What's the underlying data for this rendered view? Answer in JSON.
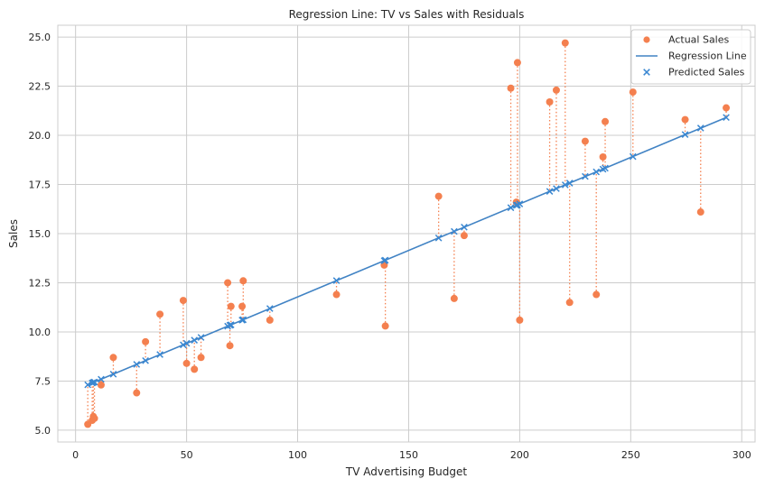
{
  "chart_data": {
    "type": "scatter",
    "title": "Regression Line: TV vs Sales with Residuals",
    "xlabel": "TV Advertising Budget",
    "ylabel": "Sales",
    "xlim": [
      -8,
      306
    ],
    "ylim": [
      4.4,
      25.6
    ],
    "xticks": [
      0,
      50,
      100,
      150,
      200,
      250,
      300
    ],
    "xtick_labels": [
      "0",
      "50",
      "100",
      "150",
      "200",
      "250",
      "300"
    ],
    "yticks": [
      5.0,
      7.5,
      10.0,
      12.5,
      15.0,
      17.5,
      20.0,
      22.5,
      25.0
    ],
    "ytick_labels": [
      "5.0",
      "7.5",
      "10.0",
      "12.5",
      "15.0",
      "17.5",
      "20.0",
      "22.5",
      "25.0"
    ],
    "grid": true,
    "legend_position": "top-right",
    "regression": {
      "intercept": 7.05,
      "slope": 0.0473
    },
    "colors": {
      "actual": "#f4804f",
      "line": "#4183c4",
      "predicted": "#3a87d1",
      "residual": "#f4804f"
    },
    "series": [
      {
        "name": "Actual Sales",
        "style": "scatter-dot",
        "x": [
          5.5,
          7.5,
          8.0,
          8.5,
          11.5,
          17.0,
          27.5,
          31.5,
          38.0,
          48.5,
          50.0,
          53.5,
          56.5,
          68.5,
          69.5,
          70.0,
          75.0,
          75.5,
          87.5,
          117.5,
          139.0,
          139.5,
          163.5,
          170.5,
          175.0,
          196.0,
          198.5,
          199.0,
          200.0,
          213.5,
          216.5,
          220.5,
          222.5,
          229.5,
          234.5,
          237.5,
          238.5,
          251.0,
          274.5,
          281.5,
          293.0
        ],
        "y": [
          5.3,
          5.5,
          5.7,
          5.6,
          7.3,
          8.7,
          6.9,
          9.5,
          10.9,
          11.6,
          8.4,
          8.1,
          8.7,
          12.5,
          9.3,
          11.3,
          11.3,
          12.6,
          10.6,
          11.9,
          13.4,
          10.3,
          16.9,
          11.7,
          14.9,
          22.4,
          16.6,
          23.7,
          10.6,
          21.7,
          22.3,
          24.7,
          11.5,
          19.7,
          11.9,
          18.9,
          20.7,
          22.2,
          20.8,
          16.1,
          21.4
        ]
      },
      {
        "name": "Regression Line",
        "style": "line",
        "x": [
          5.5,
          293.0
        ],
        "y": [
          7.31,
          20.91
        ]
      },
      {
        "name": "Predicted Sales",
        "style": "scatter-x",
        "x": [
          5.5,
          7.5,
          8.0,
          8.5,
          11.5,
          17.0,
          27.5,
          31.5,
          38.0,
          48.5,
          50.0,
          53.5,
          56.5,
          68.5,
          69.5,
          70.0,
          75.0,
          75.5,
          87.5,
          117.5,
          139.0,
          139.5,
          163.5,
          170.5,
          175.0,
          196.0,
          198.5,
          199.0,
          200.0,
          213.5,
          216.5,
          220.5,
          222.5,
          229.5,
          234.5,
          237.5,
          238.5,
          251.0,
          274.5,
          281.5,
          293.0
        ],
        "y": [
          7.31,
          7.4,
          7.43,
          7.45,
          7.59,
          7.85,
          8.35,
          8.54,
          8.85,
          9.34,
          9.42,
          9.58,
          9.72,
          10.29,
          10.34,
          10.36,
          10.6,
          10.62,
          11.19,
          12.61,
          13.62,
          13.65,
          14.78,
          15.11,
          15.33,
          16.32,
          16.44,
          16.46,
          16.51,
          17.15,
          17.29,
          17.48,
          17.57,
          17.91,
          18.14,
          18.28,
          18.33,
          18.92,
          20.04,
          20.37,
          20.91
        ]
      }
    ]
  }
}
